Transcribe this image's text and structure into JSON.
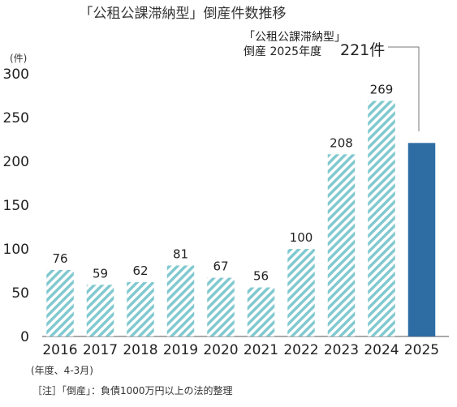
{
  "chart_data": {
    "type": "bar",
    "title": "「公租公課滞納型」倒産件数推移",
    "ylabel": "(件)",
    "xlabel": "(年度、4-3月)",
    "ylim": [
      0,
      300
    ],
    "yticks": [
      0,
      50,
      100,
      150,
      200,
      250,
      300
    ],
    "categories": [
      "2016",
      "2017",
      "2018",
      "2019",
      "2020",
      "2021",
      "2022",
      "2023",
      "2024",
      "2025"
    ],
    "values": [
      76,
      59,
      62,
      81,
      67,
      56,
      100,
      208,
      269,
      221
    ],
    "value_labels": [
      "76",
      "59",
      "62",
      "81",
      "67",
      "56",
      "100",
      "208",
      "269",
      ""
    ],
    "highlight_index": 9,
    "colors": {
      "hatch_stripe": "#7fc8cf",
      "hatch_background": "#ffffff",
      "highlight": "#2e6da4"
    },
    "callout": {
      "line1": "「公租公課滞納型」",
      "line2": "倒産 2025年度",
      "value": "221件"
    },
    "note": "［注］「倒産」：負債1000万円以上の法的整理",
    "grid": false,
    "legend": "none"
  }
}
